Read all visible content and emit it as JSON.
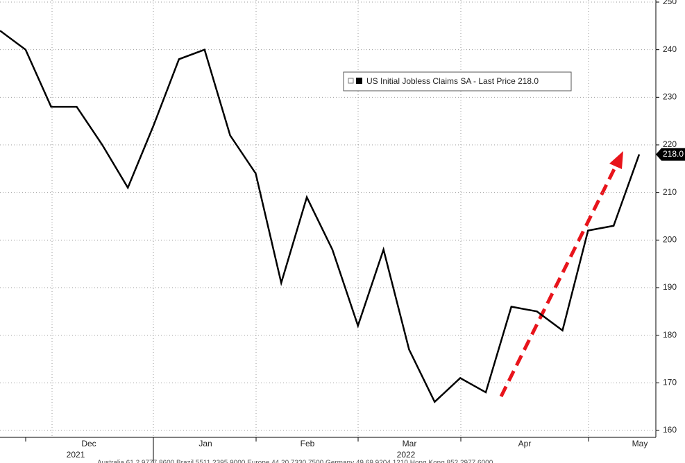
{
  "chart_data": {
    "type": "line",
    "legend": "US Initial Jobless Claims SA - Last Price 218.0",
    "categories": [
      null,
      null,
      null,
      null,
      null,
      null,
      null,
      null,
      null,
      null,
      null,
      null,
      null,
      null,
      null,
      null,
      null,
      null,
      null,
      null,
      null,
      null,
      null,
      null,
      null,
      null
    ],
    "series": [
      {
        "name": "US Initial Jobless Claims SA",
        "color": "#000000",
        "values": [
          244,
          240,
          228,
          228,
          220,
          211,
          224,
          238,
          240,
          222,
          214,
          191,
          209,
          198,
          182,
          198,
          177,
          166,
          171,
          168,
          186,
          185,
          181,
          202,
          203,
          218
        ]
      }
    ],
    "last_value_label": "218.0",
    "month_labels": [
      "Dec",
      "Jan",
      "Feb",
      "Mar",
      "Apr",
      "May"
    ],
    "year_labels": [
      "2021",
      "2022"
    ],
    "ylim": [
      160,
      250
    ],
    "yticks": [
      160,
      170,
      180,
      190,
      200,
      210,
      220,
      230,
      240,
      250
    ],
    "grid": true,
    "footer": "Australia 61 2 9777 8600 Brazil 5511 2395 9000 Europe 44 20 7330 7500 Germany 49 69 9204 1210 Hong Kong 852 2977 6000"
  }
}
